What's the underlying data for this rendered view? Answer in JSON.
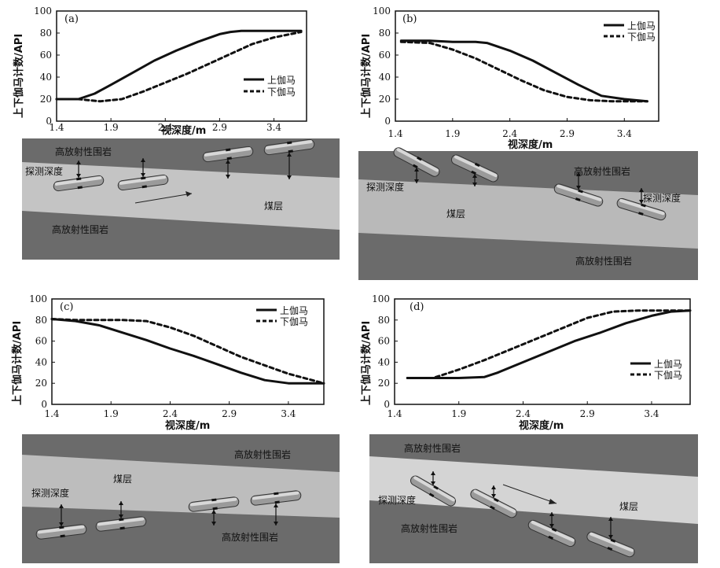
{
  "axis": {
    "ylabel": "上下伽马计数/API",
    "xlabel": "视深度/m",
    "xticks": [
      "1.4",
      "1.9",
      "2.4",
      "2.9",
      "3.4"
    ],
    "yticks": [
      "0",
      "20",
      "40",
      "60",
      "80",
      "100"
    ]
  },
  "legend": {
    "upper": "上伽马",
    "lower": "下伽马"
  },
  "scene": {
    "rock": "高放射性围岩",
    "coal": "煤层",
    "depth": "探测深度"
  },
  "colors": {
    "rock": "#6b6b6b",
    "coal_a": "#c4c4c4",
    "coal_b": "#b9b9b9",
    "coal_c": "#bdbdbd",
    "coal_d": "#d4d4d4"
  },
  "chart_data": [
    {
      "type": "line",
      "panel": "(a)",
      "xlim": [
        1.4,
        3.7
      ],
      "ylim": [
        0,
        100
      ],
      "xlabel": "视深度/m",
      "ylabel": "上下伽马计数/API",
      "series": [
        {
          "name": "上伽马",
          "style": "solid",
          "x": [
            1.4,
            1.6,
            1.75,
            1.9,
            2.1,
            2.3,
            2.5,
            2.7,
            2.9,
            3.0,
            3.1,
            3.3,
            3.5,
            3.65
          ],
          "y": [
            20,
            20,
            25,
            33,
            44,
            55,
            64,
            72,
            79,
            81,
            82,
            82,
            82,
            82
          ]
        },
        {
          "name": "下伽马",
          "style": "dashed",
          "x": [
            1.4,
            1.6,
            1.8,
            2.0,
            2.2,
            2.4,
            2.6,
            2.8,
            3.0,
            3.2,
            3.4,
            3.6,
            3.65
          ],
          "y": [
            20,
            20,
            18,
            20,
            27,
            35,
            43,
            52,
            61,
            70,
            76,
            80,
            81
          ]
        }
      ]
    },
    {
      "type": "line",
      "panel": "(b)",
      "xlim": [
        1.4,
        3.7
      ],
      "ylim": [
        0,
        100
      ],
      "xlabel": "视深度/m",
      "ylabel": "上下伽马计数/API",
      "series": [
        {
          "name": "上伽马",
          "style": "solid",
          "x": [
            1.45,
            1.7,
            1.9,
            2.1,
            2.2,
            2.4,
            2.6,
            2.8,
            3.0,
            3.2,
            3.4,
            3.6
          ],
          "y": [
            73,
            73,
            72,
            72,
            71,
            64,
            55,
            44,
            33,
            23,
            20,
            18
          ]
        },
        {
          "name": "下伽马",
          "style": "dashed",
          "x": [
            1.45,
            1.7,
            1.9,
            2.1,
            2.3,
            2.5,
            2.7,
            2.9,
            3.1,
            3.3,
            3.5,
            3.6
          ],
          "y": [
            72,
            71,
            65,
            57,
            47,
            37,
            28,
            22,
            19,
            18,
            18,
            18
          ]
        }
      ]
    },
    {
      "type": "line",
      "panel": "(c)",
      "xlim": [
        1.4,
        3.7
      ],
      "ylim": [
        0,
        100
      ],
      "xlabel": "视深度/m",
      "ylabel": "上下伽马计数/API",
      "series": [
        {
          "name": "上伽马",
          "style": "solid",
          "x": [
            1.4,
            1.6,
            1.8,
            2.0,
            2.2,
            2.4,
            2.6,
            2.8,
            3.0,
            3.2,
            3.4,
            3.6,
            3.7
          ],
          "y": [
            81,
            79,
            75,
            68,
            61,
            53,
            46,
            38,
            30,
            23,
            20,
            20,
            20
          ]
        },
        {
          "name": "下伽马",
          "style": "dashed",
          "x": [
            1.4,
            1.6,
            1.8,
            2.0,
            2.2,
            2.4,
            2.6,
            2.8,
            3.0,
            3.2,
            3.4,
            3.6,
            3.7
          ],
          "y": [
            81,
            80,
            80,
            80,
            79,
            73,
            65,
            55,
            45,
            37,
            29,
            23,
            20
          ]
        }
      ]
    },
    {
      "type": "line",
      "panel": "(d)",
      "xlim": [
        1.4,
        3.7
      ],
      "ylim": [
        0,
        100
      ],
      "xlabel": "视深度/m",
      "ylabel": "上下伽马计数/API",
      "series": [
        {
          "name": "上伽马",
          "style": "solid",
          "x": [
            1.5,
            1.7,
            1.9,
            2.1,
            2.2,
            2.4,
            2.6,
            2.8,
            3.0,
            3.2,
            3.4,
            3.55,
            3.7
          ],
          "y": [
            25,
            25,
            25,
            26,
            30,
            40,
            50,
            60,
            68,
            77,
            84,
            88,
            89
          ]
        },
        {
          "name": "下伽马",
          "style": "dashed",
          "x": [
            1.5,
            1.7,
            1.9,
            2.1,
            2.3,
            2.5,
            2.7,
            2.9,
            3.1,
            3.3,
            3.5,
            3.7
          ],
          "y": [
            25,
            25,
            33,
            42,
            52,
            62,
            72,
            82,
            88,
            89,
            89,
            89
          ]
        }
      ]
    }
  ]
}
